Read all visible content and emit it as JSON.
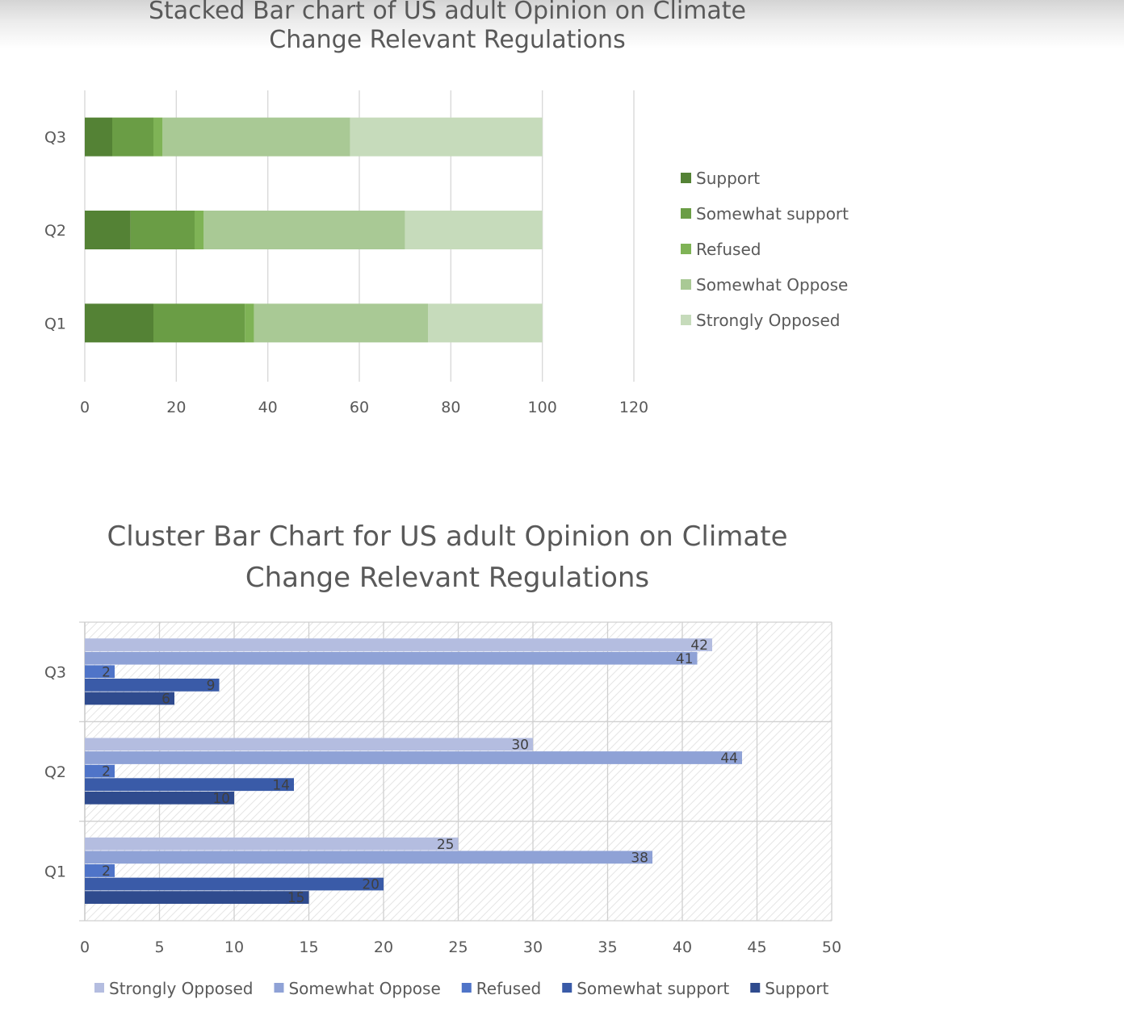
{
  "chart_data": [
    {
      "type": "bar",
      "orientation": "horizontal",
      "stacked": true,
      "title": "Stacked Bar chart of US adult Opinion on Climate Change Relevant Regulations",
      "title_lines": [
        "Stacked Bar chart of US adult Opinion on Climate",
        "Change Relevant Regulations"
      ],
      "categories": [
        "Q1",
        "Q2",
        "Q3"
      ],
      "xlim": [
        0,
        120
      ],
      "xticks": [
        "0",
        "20",
        "40",
        "60",
        "80",
        "100",
        "120"
      ],
      "grid": true,
      "legend_position": "right",
      "series": [
        {
          "name": "Support",
          "color": "#548235",
          "values": [
            15,
            10,
            6
          ]
        },
        {
          "name": "Somewhat support",
          "color": "#6a9d45",
          "values": [
            20,
            14,
            9
          ]
        },
        {
          "name": "Refused",
          "color": "#7fb356",
          "values": [
            2,
            2,
            2
          ]
        },
        {
          "name": "Somewhat Oppose",
          "color": "#a9c995",
          "values": [
            38,
            44,
            41
          ]
        },
        {
          "name": "Strongly Opposed",
          "color": "#c6dbbb",
          "values": [
            25,
            30,
            42
          ]
        }
      ]
    },
    {
      "type": "bar",
      "orientation": "horizontal",
      "stacked": false,
      "title": "Cluster Bar Chart for US adult Opinion on Climate Change Relevant Regulations",
      "title_lines": [
        "Cluster Bar Chart for US adult Opinion on Climate",
        "Change Relevant Regulations"
      ],
      "categories": [
        "Q1",
        "Q2",
        "Q3"
      ],
      "xlim": [
        0,
        50
      ],
      "xticks": [
        "0",
        "5",
        "10",
        "15",
        "20",
        "25",
        "30",
        "35",
        "40",
        "45",
        "50"
      ],
      "grid": true,
      "data_labels": true,
      "legend_position": "bottom",
      "series": [
        {
          "name": "Strongly Opposed",
          "color": "#b4bde0",
          "values": [
            25,
            30,
            42
          ]
        },
        {
          "name": "Somewhat Oppose",
          "color": "#8fa2d6",
          "values": [
            38,
            44,
            41
          ]
        },
        {
          "name": "Refused",
          "color": "#4f74c8",
          "values": [
            2,
            2,
            2
          ]
        },
        {
          "name": "Somewhat support",
          "color": "#3a5ba8",
          "values": [
            20,
            14,
            9
          ]
        },
        {
          "name": "Support",
          "color": "#2f4b8e",
          "values": [
            15,
            10,
            6
          ]
        }
      ]
    }
  ]
}
